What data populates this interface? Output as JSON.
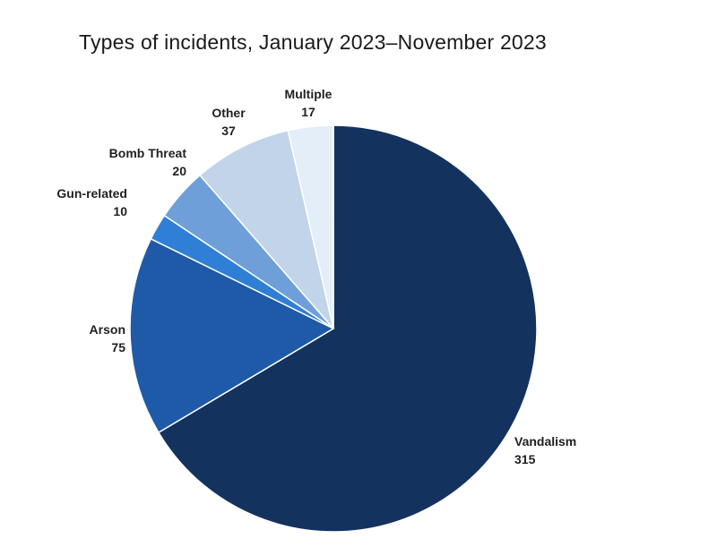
{
  "chart_data": {
    "type": "pie",
    "title": "Types of incidents, January 2023–November 2023",
    "start_angle": "12 o'clock",
    "direction": "clockwise",
    "slices": [
      {
        "label": "Vandalism",
        "value": 315,
        "color": "#14325e"
      },
      {
        "label": "Arson",
        "value": 75,
        "color": "#1f5aa8"
      },
      {
        "label": "Gun-related",
        "value": 10,
        "color": "#2f7fd6"
      },
      {
        "label": "Bomb Threat",
        "value": 20,
        "color": "#6f9fd8"
      },
      {
        "label": "Other",
        "value": 37,
        "color": "#c2d4ea"
      },
      {
        "label": "Multiple",
        "value": 17,
        "color": "#e3eef9"
      }
    ]
  }
}
